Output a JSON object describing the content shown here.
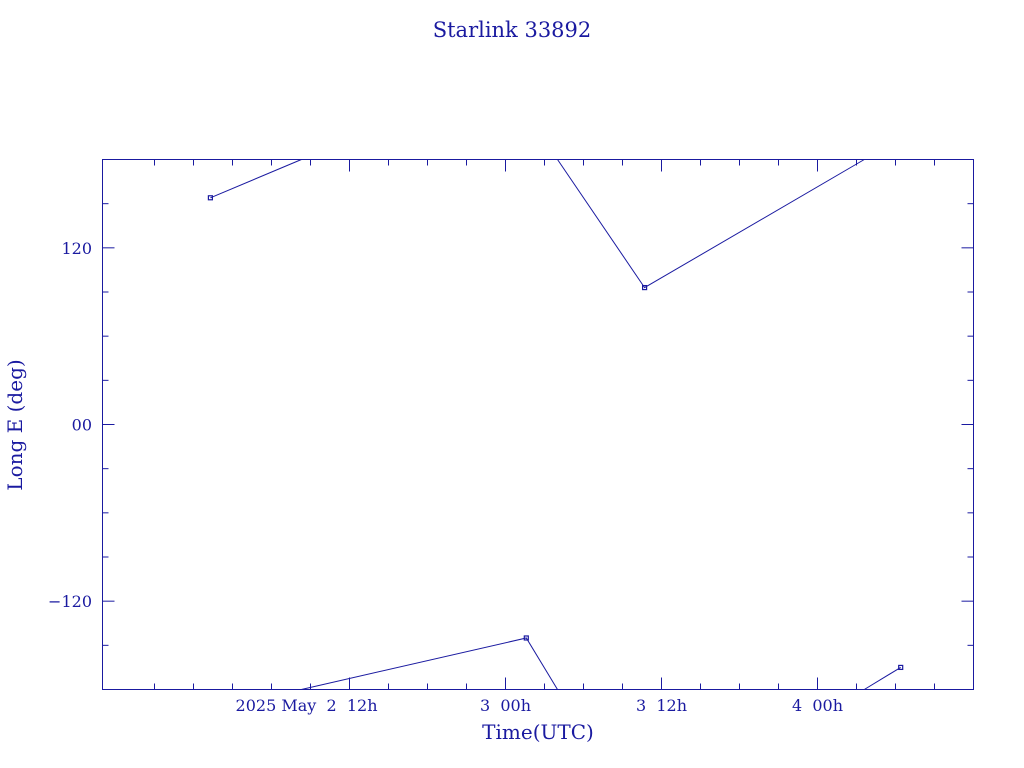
{
  "chart_data": {
    "type": "line",
    "title": "Starlink 33892",
    "xlabel": "Time(UTC)",
    "ylabel": "Long E (deg)",
    "x_unit": "hours from 2025 May 2 00h",
    "xlim": [
      -7,
      60
    ],
    "ylim": [
      -180,
      180
    ],
    "x_ticks": [
      {
        "x": 12,
        "label": "2025 May  2  12h"
      },
      {
        "x": 24,
        "label": "3  00h"
      },
      {
        "x": 36,
        "label": "3  12h"
      },
      {
        "x": 48,
        "label": "4  00h"
      }
    ],
    "x_minor_ticks": [
      -3,
      0,
      3,
      6,
      9,
      15,
      18,
      21,
      27,
      30,
      33,
      39,
      42,
      45,
      51,
      54,
      57
    ],
    "y_ticks": [
      {
        "y": 120,
        "label": "120"
      },
      {
        "y": 0,
        "label": "00"
      },
      {
        "y": -120,
        "label": "−120"
      }
    ],
    "y_minor_ticks": [
      -150,
      -90,
      -60,
      -30,
      30,
      60,
      90,
      150
    ],
    "series": [
      {
        "segments": [
          [
            [
              1.3,
              154
            ],
            [
              8.3,
              180
            ]
          ],
          [
            [
              8.3,
              -180
            ],
            [
              25.6,
              -145
            ],
            [
              28.0,
              -180
            ]
          ],
          [
            [
              28.0,
              180
            ],
            [
              34.7,
              93
            ],
            [
              51.6,
              180
            ]
          ],
          [
            [
              51.6,
              -180
            ],
            [
              54.4,
              -165
            ]
          ]
        ],
        "markers": [
          [
            1.3,
            154
          ],
          [
            25.6,
            -145
          ],
          [
            34.7,
            93
          ],
          [
            54.4,
            -165
          ]
        ]
      }
    ],
    "grid": false,
    "color": "#1a1aa0"
  }
}
